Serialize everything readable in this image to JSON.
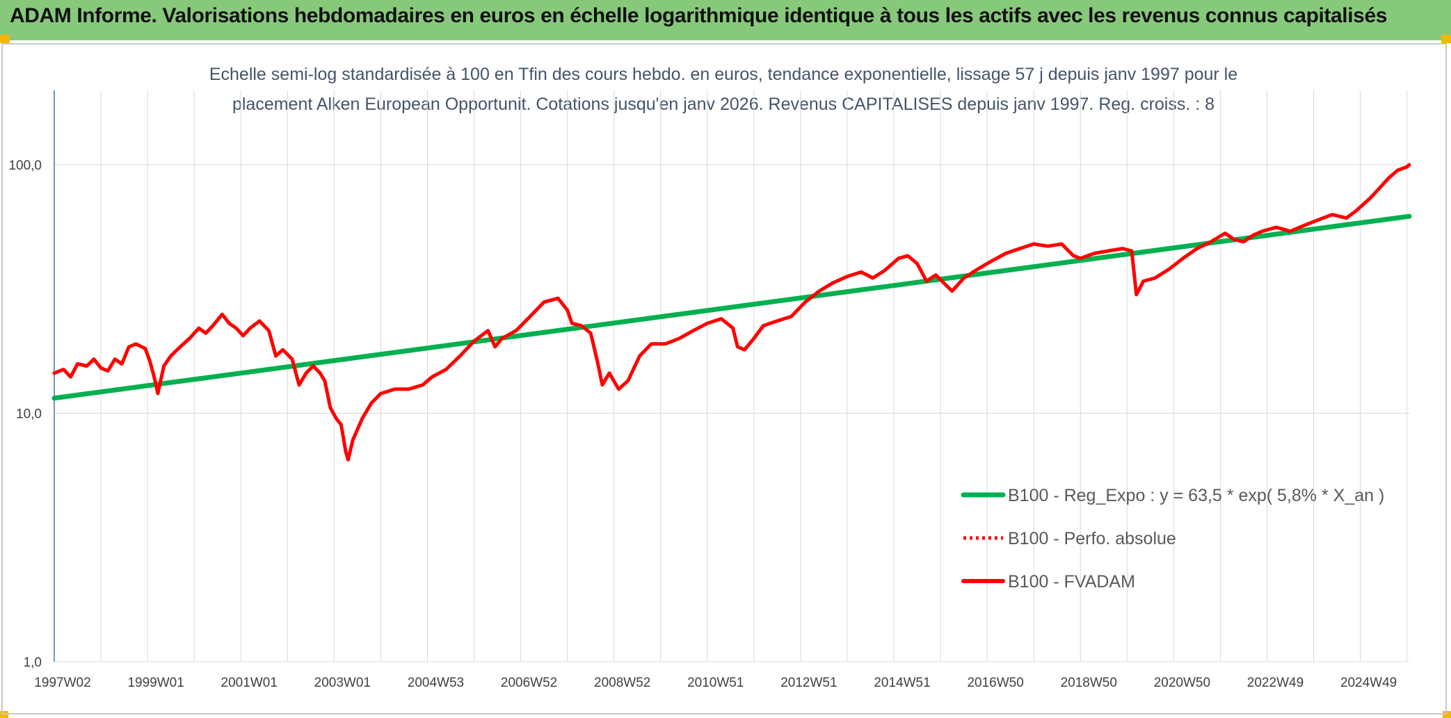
{
  "header": {
    "title": "ADAM Informe. Valorisations hebdomadaires en euros en échelle logarithmique identique à tous les actifs avec les revenus connus capitalisés"
  },
  "colors": {
    "header_bg": "#86c97a",
    "accent": "#f2b800",
    "trend": "#00b050",
    "series": "#ff0000",
    "title_text": "#44546a",
    "grid": "#d9d9d9"
  },
  "chart_data": {
    "type": "line",
    "title_lines": [
      "Echelle semi-log standardisée à 100 en Tfin des cours hebdo. en euros, tendance exponentielle, lissage 57 j depuis janv 1997 pour le",
      "placement Alken European Opportunit. Cotations jusqu'en janv 2026. Revenus CAPITALISES depuis janv 1997. Reg. croiss. : 8"
    ],
    "y_scale": "log",
    "ylim": [
      1,
      100
    ],
    "xlim": [
      1997.0,
      2026.05
    ],
    "y_ticks": [
      {
        "value": 100,
        "label": "100,0"
      },
      {
        "value": 10,
        "label": "10,0"
      },
      {
        "value": 1,
        "label": "1,0"
      }
    ],
    "x_ticks": [
      {
        "value": 1997.0,
        "label": "1997W02"
      },
      {
        "value": 1999.0,
        "label": "1999W01"
      },
      {
        "value": 2001.0,
        "label": "2001W01"
      },
      {
        "value": 2003.0,
        "label": "2003W01"
      },
      {
        "value": 2005.0,
        "label": "2004W53"
      },
      {
        "value": 2007.0,
        "label": "2006W52"
      },
      {
        "value": 2009.0,
        "label": "2008W52"
      },
      {
        "value": 2011.0,
        "label": "2010W51"
      },
      {
        "value": 2013.0,
        "label": "2012W51"
      },
      {
        "value": 2015.0,
        "label": "2014W51"
      },
      {
        "value": 2017.0,
        "label": "2016W50"
      },
      {
        "value": 2019.0,
        "label": "2018W50"
      },
      {
        "value": 2021.0,
        "label": "2020W50"
      },
      {
        "value": 2023.0,
        "label": "2022W49"
      },
      {
        "value": 2025.0,
        "label": "2024W49"
      }
    ],
    "grid": true,
    "legend_position": "bottom-right",
    "series": [
      {
        "name": "B100 - Reg_Expo : y = 63,5 * exp( 5,8% *  X_an )",
        "style": "solid-thick",
        "color": "#00b050",
        "points": [
          [
            1997.0,
            11.5
          ],
          [
            2026.05,
            62.0
          ]
        ]
      },
      {
        "name": "B100 - Perfo. absolue",
        "style": "dotted",
        "color": "#ff0000",
        "points": []
      },
      {
        "name": "B100 - FVADAM",
        "style": "solid",
        "color": "#ff0000",
        "points": [
          [
            1997.0,
            14.5
          ],
          [
            1997.2,
            15.0
          ],
          [
            1997.35,
            14.0
          ],
          [
            1997.5,
            15.8
          ],
          [
            1997.7,
            15.5
          ],
          [
            1997.85,
            16.5
          ],
          [
            1998.0,
            15.2
          ],
          [
            1998.15,
            14.8
          ],
          [
            1998.3,
            16.5
          ],
          [
            1998.45,
            15.8
          ],
          [
            1998.6,
            18.5
          ],
          [
            1998.75,
            19.0
          ],
          [
            1998.95,
            18.2
          ],
          [
            1999.05,
            16.2
          ],
          [
            1999.15,
            13.8
          ],
          [
            1999.22,
            12.0
          ],
          [
            1999.35,
            15.5
          ],
          [
            1999.5,
            17.0
          ],
          [
            1999.7,
            18.5
          ],
          [
            1999.9,
            20.0
          ],
          [
            2000.1,
            22.0
          ],
          [
            2000.25,
            21.0
          ],
          [
            2000.4,
            22.5
          ],
          [
            2000.6,
            25.0
          ],
          [
            2000.75,
            23.0
          ],
          [
            2000.9,
            22.0
          ],
          [
            2001.05,
            20.5
          ],
          [
            2001.2,
            22.0
          ],
          [
            2001.4,
            23.5
          ],
          [
            2001.6,
            21.5
          ],
          [
            2001.75,
            17.0
          ],
          [
            2001.9,
            18.0
          ],
          [
            2002.1,
            16.5
          ],
          [
            2002.25,
            13.0
          ],
          [
            2002.4,
            14.5
          ],
          [
            2002.55,
            15.5
          ],
          [
            2002.7,
            14.5
          ],
          [
            2002.8,
            13.5
          ],
          [
            2002.92,
            10.5
          ],
          [
            2003.05,
            9.5
          ],
          [
            2003.15,
            9.0
          ],
          [
            2003.25,
            7.0
          ],
          [
            2003.3,
            6.5
          ],
          [
            2003.4,
            7.8
          ],
          [
            2003.6,
            9.5
          ],
          [
            2003.8,
            11.0
          ],
          [
            2004.0,
            12.0
          ],
          [
            2004.3,
            12.5
          ],
          [
            2004.6,
            12.5
          ],
          [
            2004.9,
            13.0
          ],
          [
            2005.1,
            14.0
          ],
          [
            2005.4,
            15.0
          ],
          [
            2005.7,
            17.0
          ],
          [
            2006.0,
            19.5
          ],
          [
            2006.3,
            21.5
          ],
          [
            2006.45,
            18.5
          ],
          [
            2006.6,
            20.0
          ],
          [
            2006.9,
            21.5
          ],
          [
            2007.2,
            24.5
          ],
          [
            2007.5,
            28.0
          ],
          [
            2007.8,
            29.0
          ],
          [
            2008.0,
            26.0
          ],
          [
            2008.1,
            23.0
          ],
          [
            2008.3,
            22.5
          ],
          [
            2008.5,
            21.0
          ],
          [
            2008.65,
            16.0
          ],
          [
            2008.75,
            13.0
          ],
          [
            2008.9,
            14.5
          ],
          [
            2009.1,
            12.5
          ],
          [
            2009.3,
            13.5
          ],
          [
            2009.55,
            17.0
          ],
          [
            2009.8,
            19.0
          ],
          [
            2010.1,
            19.0
          ],
          [
            2010.4,
            20.0
          ],
          [
            2010.7,
            21.5
          ],
          [
            2011.0,
            23.0
          ],
          [
            2011.3,
            24.0
          ],
          [
            2011.55,
            22.0
          ],
          [
            2011.65,
            18.5
          ],
          [
            2011.8,
            18.0
          ],
          [
            2012.0,
            20.0
          ],
          [
            2012.2,
            22.5
          ],
          [
            2012.5,
            23.5
          ],
          [
            2012.8,
            24.5
          ],
          [
            2013.1,
            28.0
          ],
          [
            2013.4,
            31.0
          ],
          [
            2013.7,
            33.5
          ],
          [
            2014.0,
            35.5
          ],
          [
            2014.3,
            37.0
          ],
          [
            2014.55,
            35.0
          ],
          [
            2014.8,
            37.5
          ],
          [
            2015.1,
            42.0
          ],
          [
            2015.3,
            43.0
          ],
          [
            2015.5,
            40.0
          ],
          [
            2015.7,
            34.0
          ],
          [
            2015.9,
            36.0
          ],
          [
            2016.1,
            33.0
          ],
          [
            2016.25,
            31.0
          ],
          [
            2016.5,
            35.0
          ],
          [
            2016.8,
            38.0
          ],
          [
            2017.1,
            41.0
          ],
          [
            2017.4,
            44.0
          ],
          [
            2017.7,
            46.0
          ],
          [
            2018.0,
            48.0
          ],
          [
            2018.3,
            47.0
          ],
          [
            2018.6,
            48.0
          ],
          [
            2018.85,
            43.0
          ],
          [
            2019.0,
            42.0
          ],
          [
            2019.3,
            44.0
          ],
          [
            2019.6,
            45.0
          ],
          [
            2019.9,
            46.0
          ],
          [
            2020.1,
            45.0
          ],
          [
            2020.2,
            30.0
          ],
          [
            2020.35,
            34.0
          ],
          [
            2020.6,
            35.0
          ],
          [
            2020.9,
            38.0
          ],
          [
            2021.2,
            42.0
          ],
          [
            2021.5,
            46.0
          ],
          [
            2021.8,
            49.0
          ],
          [
            2022.1,
            53.0
          ],
          [
            2022.3,
            50.0
          ],
          [
            2022.5,
            49.0
          ],
          [
            2022.7,
            52.0
          ],
          [
            2022.9,
            54.0
          ],
          [
            2023.2,
            56.0
          ],
          [
            2023.5,
            54.0
          ],
          [
            2023.8,
            57.0
          ],
          [
            2024.1,
            60.0
          ],
          [
            2024.4,
            63.0
          ],
          [
            2024.7,
            61.0
          ],
          [
            2024.9,
            65.0
          ],
          [
            2025.2,
            73.0
          ],
          [
            2025.4,
            80.0
          ],
          [
            2025.6,
            88.0
          ],
          [
            2025.8,
            95.0
          ],
          [
            2026.0,
            98.0
          ],
          [
            2026.05,
            100.0
          ]
        ]
      }
    ]
  }
}
